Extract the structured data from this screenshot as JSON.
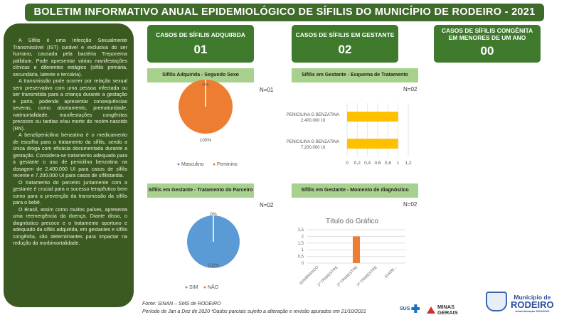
{
  "header": {
    "title": "BOLETIM INFORMATIVO ANUAL EPIDEMIOLÓGICO DE SÍFILIS DO MUNICÍPIO DE RODEIRO - 2021"
  },
  "info": {
    "paragraphs": [
      "A Sífilis é uma Infecção Sexualmente Transmissível (IST) curável e exclusiva do ser humano, causada pela bactéria Treponema pallidum. Pode apresentar várias manifestações clínicas e diferentes estágios (sífilis primária, secundária, latente e terciária).",
      "A transmissão pode ocorrer por relação sexual sem preservativo com uma pessoa infectada ou ser transmitida para a criança durante a gestação e parto, podendo apresentar consequências severas, como abortamento, prematuridade, natimortalidade, manifestações congênitas precoces ou tardias e/ou morte do recém-nascido (RN).",
      "A benzilpenicilina benzatina é o medicamento de escolha para o tratamento da sífilis, sendo a única droga com eficácia documentada durante a gestação. Considera-se tratamento adequado para a gestante o uso de penicilina benzatina na dosagem de 2.400.000 UI para casos de sífilis recente e 7.200.000 UI para casos de sífilistardia.",
      "O tratamento do parceiro juntamente com a gestante é crucial para o sucesso terapêutico bem como para a prevenção da transmissão da sífilis para o bebê.",
      "O Brasil, assim como muitos países, apresenta uma reemergência da doença. Diante disso, o diagnóstico precoce e o tratamento oportuno e adequado da sífilis adquirida, em gestantes e sífilis congênita, são determinantes para impactar na redução da morbimortalidade."
    ]
  },
  "cards": [
    {
      "title": "CASOS DE SÍFILIS ADQUIRIDA",
      "value": "01"
    },
    {
      "title": "CASOS DE SÍFILIS EM GESTANTE",
      "value": "02"
    },
    {
      "title": "CASOS DE SÍFILIS CONGÊNITA EM MENORES DE UM ANO",
      "value": "00"
    }
  ],
  "chart_data": [
    {
      "type": "pie",
      "title": "Sífilis Adquirida - Segundo Sexo",
      "n": "N=01",
      "series": [
        {
          "name": "Masculino",
          "value": 0,
          "label": "0%",
          "color": "#5b9bd5"
        },
        {
          "name": "Feminino",
          "value": 100,
          "label": "100%",
          "color": "#ed7d31"
        }
      ]
    },
    {
      "type": "bar",
      "orientation": "horizontal",
      "title": "Sífilis em Gestante - Esquema de Tratamento",
      "n": "N=02",
      "categories": [
        "PENICILINA G BENZATINA 2.400.000 UI",
        "PENICILINA G BENZATINA 7.200.000 UI"
      ],
      "values": [
        1,
        1
      ],
      "xlim": [
        0,
        1.2
      ],
      "ticks": [
        "0",
        "0,2",
        "0,4",
        "0,6",
        "0,8",
        "1",
        "1,2"
      ],
      "color": "#ffc000"
    },
    {
      "type": "pie",
      "title": "Sífilis em Gestante - Tratamento do Parceiro",
      "n": "N=02",
      "series": [
        {
          "name": "SIM",
          "value": 100,
          "label": "100%",
          "color": "#5b9bd5"
        },
        {
          "name": "NÃO",
          "value": 0,
          "label": "0%",
          "color": "#ed7d31"
        }
      ]
    },
    {
      "type": "bar",
      "title": "Sífilis em Gestante - Momento de diagnóstico",
      "n": "N=02",
      "chart_title": "Título do Gráfico",
      "categories": [
        "IGN/BRANCO",
        "1º TRIMESTRE",
        "2º TRIMESTRE",
        "3º TRIMESTRE",
        "IDADE..."
      ],
      "values": [
        0,
        0,
        2,
        0,
        0
      ],
      "ylim": [
        0,
        2.5
      ],
      "ticks": [
        "0",
        "0,5",
        "1",
        "1,5",
        "2",
        "2,5"
      ],
      "color": "#ed7d31"
    }
  ],
  "footer": {
    "source": "Fonte: SINAN – SMS de RODEIRO",
    "period": "Período de Jan a Dez de 2020 *Dados parciais sujeito a alteração e revisão apurados em 21/10/2021"
  },
  "logos": {
    "sus": "SUS",
    "mg": "MINAS GERAIS",
    "municipio": "Município de",
    "rodeiro": "RODEIRO",
    "admin": "Administração 2021/2024"
  }
}
